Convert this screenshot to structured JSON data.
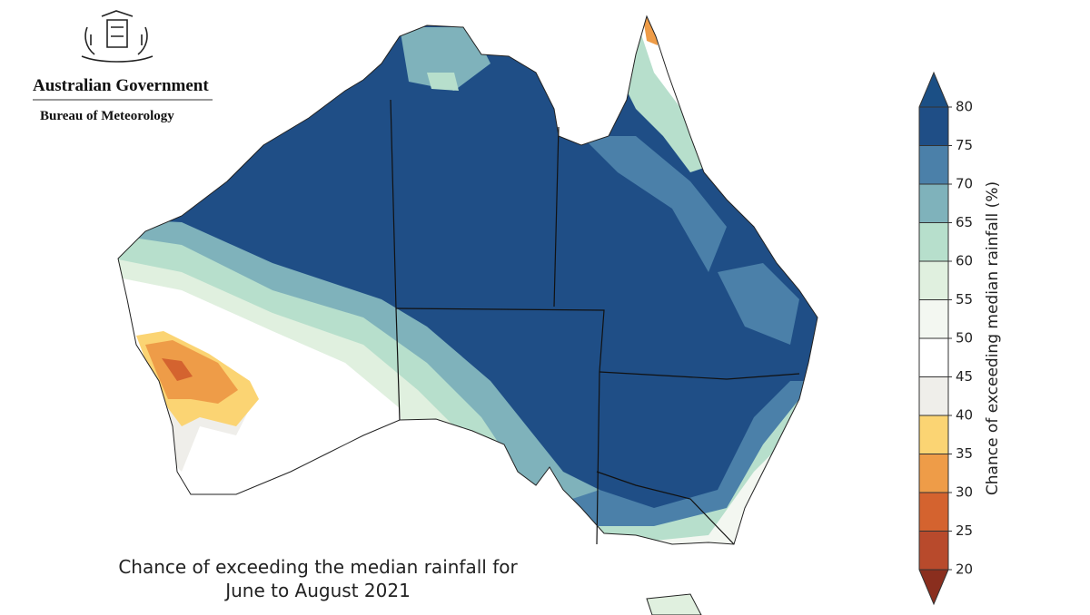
{
  "header": {
    "government": "Australian Government",
    "bureau": "Bureau of Meteorology"
  },
  "caption": [
    "Chance of exceeding the median rainfall for",
    "June to August 2021"
  ],
  "legend": {
    "label": "Chance of exceeding median rainfall (%)",
    "ticks": [
      20,
      25,
      30,
      35,
      40,
      45,
      50,
      55,
      60,
      65,
      70,
      75,
      80
    ],
    "colors": [
      "#b84a2c",
      "#d4632f",
      "#ee9c48",
      "#fbd473",
      "#efeeea",
      "#ffffff",
      "#f3f7f1",
      "#e0f0df",
      "#b7dfcc",
      "#7fb2bb",
      "#4b80a9",
      "#1f4e86"
    ],
    "under_color": "#8a2e1e",
    "over_color": "#1b4f85"
  }
}
